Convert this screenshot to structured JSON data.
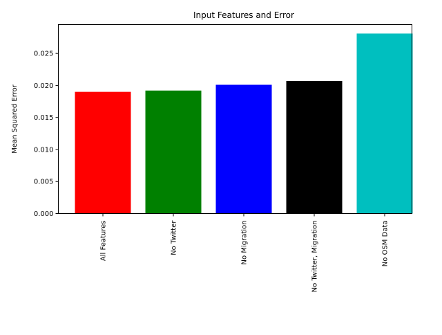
{
  "chart_data": {
    "type": "bar",
    "title": "Input Features and Error",
    "xlabel": "",
    "ylabel": "Mean Squared Error",
    "categories": [
      "All Features",
      "No Twitter",
      "No Migration",
      "No Twitter, Migration",
      "No OSM Data"
    ],
    "values": [
      0.019,
      0.0192,
      0.0201,
      0.0207,
      0.0281
    ],
    "colors": [
      "#ff0000",
      "#008000",
      "#0000ff",
      "#000000",
      "#00bfbf"
    ],
    "ylim": [
      0,
      0.0295
    ],
    "yticks": [
      0.0,
      0.005,
      0.01,
      0.015,
      0.02,
      0.025
    ],
    "ytick_labels": [
      "0.000",
      "0.005",
      "0.010",
      "0.015",
      "0.020",
      "0.025"
    ],
    "grid": false,
    "legend": "none"
  }
}
